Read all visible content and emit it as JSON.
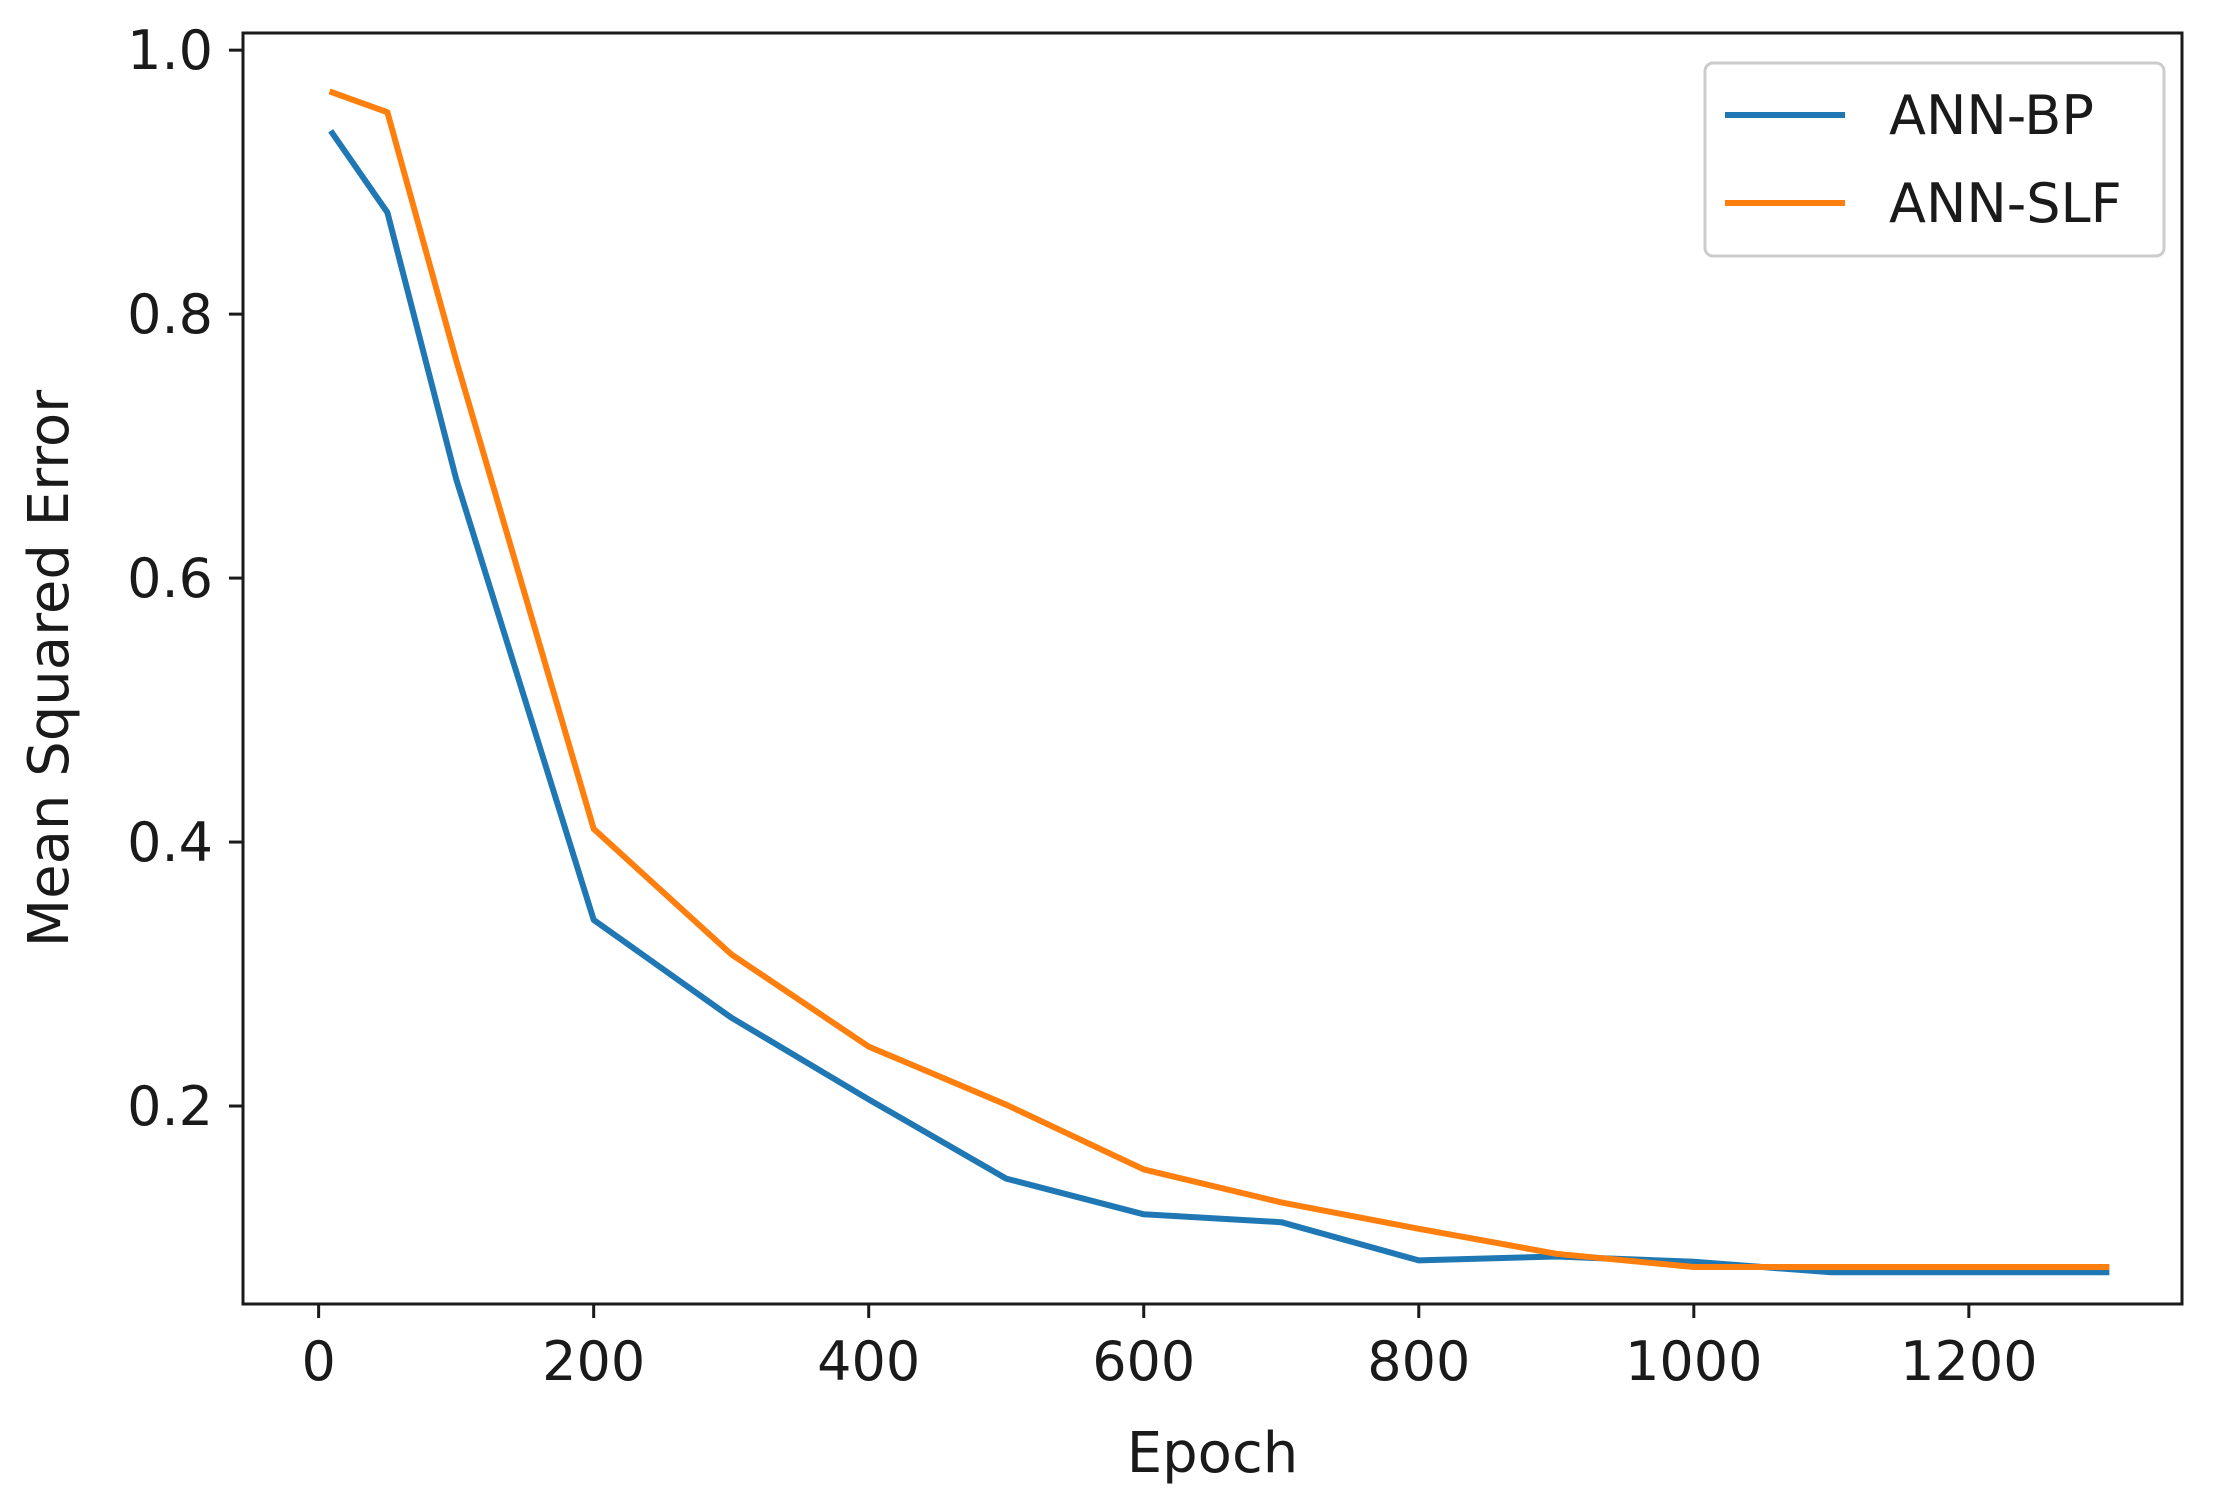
{
  "chart_data": {
    "type": "line",
    "title": "",
    "xlabel": "Epoch",
    "ylabel": "Mean Squared Error",
    "xlim": [
      -55,
      1355
    ],
    "ylim": [
      0.05,
      1.013
    ],
    "x_ticks": [
      0,
      200,
      400,
      600,
      800,
      1000,
      1200
    ],
    "y_ticks": [
      0.2,
      0.4,
      0.6,
      0.8,
      1.0
    ],
    "x_tick_labels": [
      "0",
      "200",
      "400",
      "600",
      "800",
      "1000",
      "1200"
    ],
    "y_tick_labels": [
      "0.2",
      "0.4",
      "0.6",
      "0.8",
      "1.0"
    ],
    "grid": false,
    "legend_position": "top-right",
    "series": [
      {
        "name": "ANN-BP",
        "color": "#1f77b4",
        "x": [
          10,
          50,
          100,
          200,
          300,
          400,
          500,
          600,
          700,
          800,
          900,
          1000,
          1100,
          1200,
          1300
        ],
        "y": [
          0.937,
          0.877,
          0.675,
          0.341,
          0.267,
          0.205,
          0.145,
          0.118,
          0.112,
          0.083,
          0.086,
          0.082,
          0.074,
          0.074,
          0.074
        ]
      },
      {
        "name": "ANN-SLF",
        "color": "#ff7f0e",
        "x": [
          10,
          50,
          100,
          200,
          300,
          400,
          500,
          600,
          700,
          800,
          900,
          1000,
          1100,
          1200,
          1300
        ],
        "y": [
          0.968,
          0.953,
          0.765,
          0.41,
          0.315,
          0.245,
          0.201,
          0.152,
          0.127,
          0.107,
          0.088,
          0.078,
          0.078,
          0.078,
          0.078
        ]
      }
    ]
  }
}
